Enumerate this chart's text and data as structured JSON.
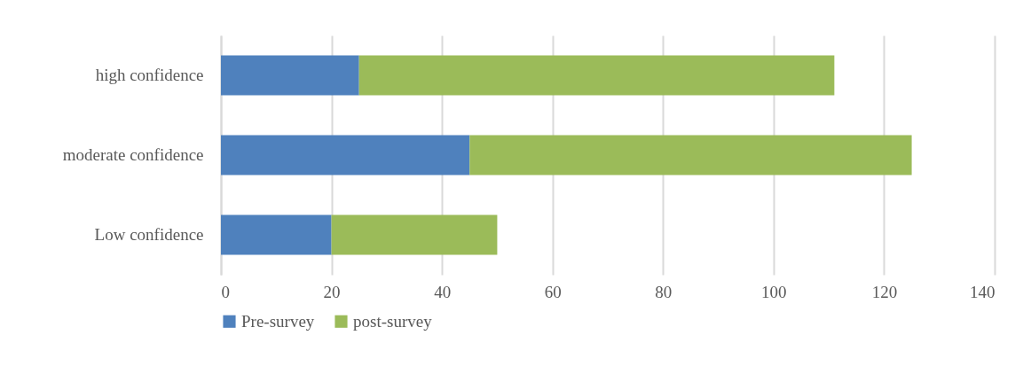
{
  "chart_data": {
    "type": "bar",
    "orientation": "horizontal",
    "stacked": true,
    "categories": [
      "high confidence",
      "moderate confidence",
      "Low confidence"
    ],
    "series": [
      {
        "name": "Pre-survey",
        "color": "#4f81bd",
        "values": [
          25,
          45,
          20
        ]
      },
      {
        "name": "post-survey",
        "color": "#9bbb59",
        "values": [
          86,
          80,
          30
        ]
      }
    ],
    "xlim": [
      0,
      140
    ],
    "xticks": [
      0,
      20,
      40,
      60,
      80,
      100,
      120,
      140
    ],
    "grid": "x",
    "legend": "bottom"
  }
}
